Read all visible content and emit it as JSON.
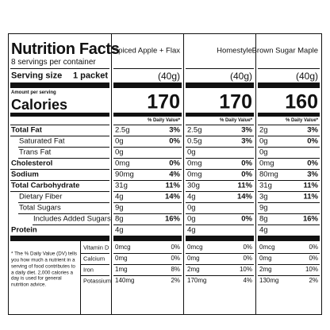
{
  "header": {
    "title": "Nutrition Facts",
    "servings": "8 servings per container",
    "serving_size_label": "Serving size",
    "serving_size": "1 packet",
    "amount_per_serving": "Amount per serving",
    "calories_label": "Calories"
  },
  "nutrient_labels": [
    "Total Fat",
    "Saturated Fat",
    "Trans Fat",
    "Cholesterol",
    "Sodium",
    "Total Carbohydrate",
    "Dietary Fiber",
    "Total Sugars",
    "Includes Added Sugars",
    "Protein"
  ],
  "vitamin_labels": [
    "Vitamin D",
    "Calcium",
    "Iron",
    "Potassium"
  ],
  "footnote": "* The % Daily Value (DV) tells you how much a nutrient in a serving of food contributes to a daily diet. 2,000 calories a day is used for general nutrition advice.",
  "products": [
    {
      "name": "Spiced Apple + Flax",
      "serving": "(40g)",
      "calories": "170",
      "dv_header": "% Daily Value*",
      "nutrients": [
        [
          "2.5g",
          "3%"
        ],
        [
          "0g",
          "0%"
        ],
        [
          "0g"
        ],
        [
          "0mg",
          "0%"
        ],
        [
          "90mg",
          "4%"
        ],
        [
          "31g",
          "11%"
        ],
        [
          "4g",
          "14%"
        ],
        [
          "9g"
        ],
        [
          "8g",
          "16%"
        ],
        [
          "4g"
        ]
      ],
      "vitamins": [
        [
          "0mcg",
          "0%"
        ],
        [
          "0mg",
          "0%"
        ],
        [
          "1mg",
          "8%"
        ],
        [
          "140mg",
          "2%"
        ]
      ]
    },
    {
      "name": "Homestyle",
      "serving": "(40g)",
      "calories": "170",
      "dv_header": "% Daily Value*",
      "nutrients": [
        [
          "2.5g",
          "3%"
        ],
        [
          "0.5g",
          "3%"
        ],
        [
          "0g"
        ],
        [
          "0mg",
          "0%"
        ],
        [
          "0mg",
          "0%"
        ],
        [
          "30g",
          "11%"
        ],
        [
          "4g",
          "14%"
        ],
        [
          "0g"
        ],
        [
          "0g",
          "0%"
        ],
        [
          "4g"
        ]
      ],
      "vitamins": [
        [
          "0mcg",
          "0%"
        ],
        [
          "0mg",
          "0%"
        ],
        [
          "2mg",
          "10%"
        ],
        [
          "170mg",
          "4%"
        ]
      ]
    },
    {
      "name": "Brown Sugar Maple",
      "serving": "(40g)",
      "calories": "160",
      "dv_header": "% Daily Value*",
      "nutrients": [
        [
          "2g",
          "3%"
        ],
        [
          "0g",
          "0%"
        ],
        [
          "0g"
        ],
        [
          "0mg",
          "0%"
        ],
        [
          "80mg",
          "3%"
        ],
        [
          "31g",
          "11%"
        ],
        [
          "3g",
          "11%"
        ],
        [
          "9g"
        ],
        [
          "8g",
          "16%"
        ],
        [
          "4g"
        ]
      ],
      "vitamins": [
        [
          "0mcg",
          "0%"
        ],
        [
          "0mg",
          "0%"
        ],
        [
          "2mg",
          "10%"
        ],
        [
          "130mg",
          "2%"
        ]
      ]
    }
  ]
}
